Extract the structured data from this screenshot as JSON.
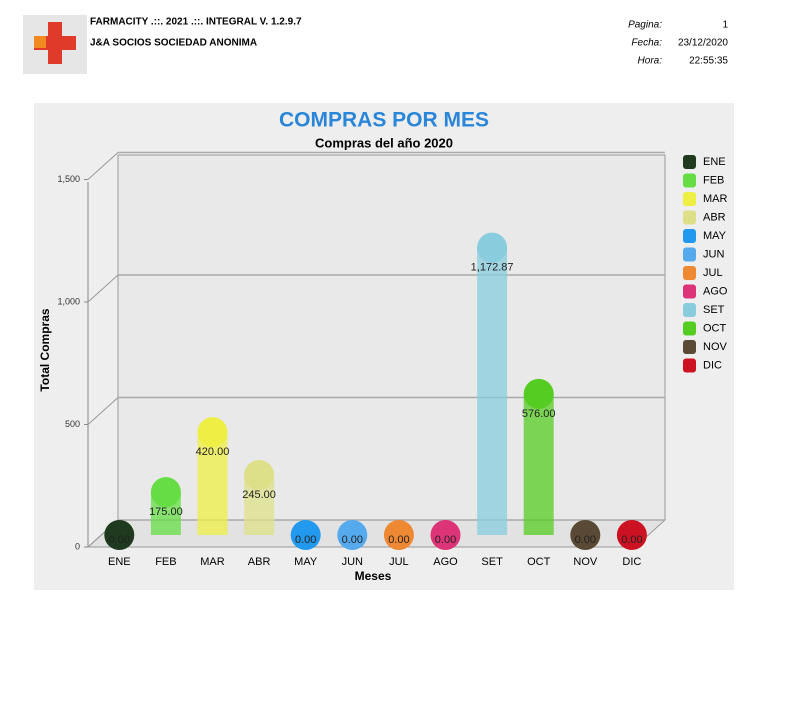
{
  "header": {
    "title": "FARMACITY .::. 2021 .::. INTEGRAL  V.  1.2.9.7",
    "company": "J&A SOCIOS SOCIEDAD ANONIMA",
    "info": [
      {
        "label": "Pagina:",
        "value": "1"
      },
      {
        "label": "Fecha:",
        "value": "23/12/2020"
      },
      {
        "label": "Hora:",
        "value": "22:55:35"
      }
    ]
  },
  "chart_data": {
    "type": "bar",
    "title": "COMPRAS POR MES",
    "subtitle": "Compras del año 2020",
    "y_label": "Total Compras",
    "x_label": "Meses",
    "categories": [
      "ENE",
      "FEB",
      "MAR",
      "ABR",
      "MAY",
      "JUN",
      "JUL",
      "AGO",
      "SET",
      "OCT",
      "NOV",
      "DIC"
    ],
    "values": [
      0,
      175,
      420,
      245,
      0,
      0,
      0,
      0,
      1172.87,
      576,
      0,
      0
    ],
    "value_labels": [
      "0.00",
      "175.00",
      "420.00",
      "245.00",
      "0.00",
      "0.00",
      "0.00",
      "0.00",
      "1,172.87",
      "576.00",
      "0.00",
      "0.00"
    ],
    "colors": [
      "#1f3a1f",
      "#66dd44",
      "#eeee44",
      "#dde088",
      "#2299ee",
      "#55aaee",
      "#ee8833",
      "#dd3377",
      "#88ccdd",
      "#55cc22",
      "#5a4a35",
      "#cc1122"
    ],
    "ylim": [
      0,
      1500
    ],
    "yticks": [
      0,
      500,
      {
        "value": 1000,
        "label": "1,000"
      },
      {
        "value": 1500,
        "label": "1,500"
      }
    ],
    "grid": true,
    "legend": "right"
  }
}
